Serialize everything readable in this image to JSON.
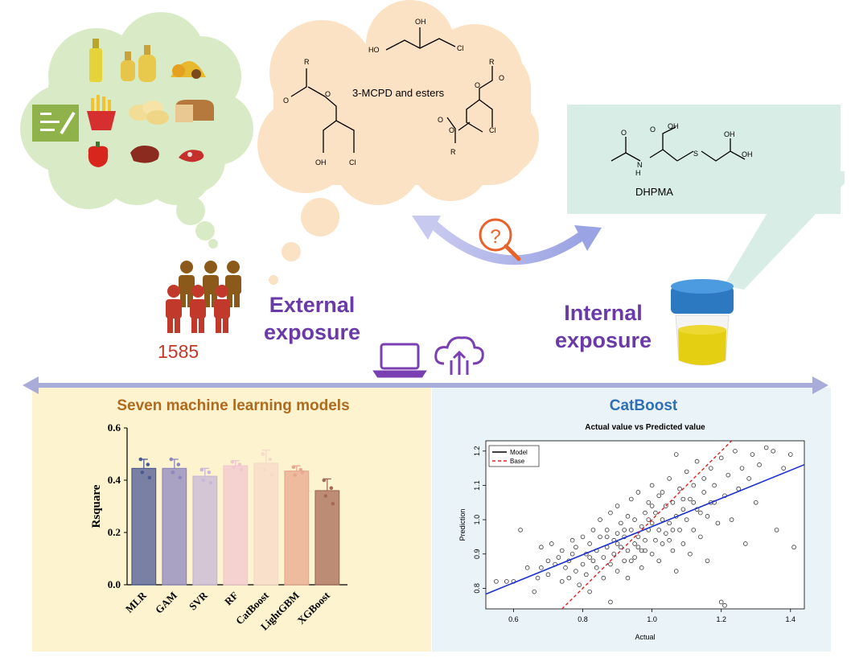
{
  "external": {
    "label": "External exposure",
    "population": "1585"
  },
  "internal": {
    "label": "Internal exposure"
  },
  "molecules": {
    "mcpd": "3-MCPD and esters",
    "dhpma": "DHPMA"
  },
  "models_panel": {
    "title": "Seven machine learning models"
  },
  "catboost_panel": {
    "title": "CatBoost"
  },
  "colors": {
    "cloud_green": "#d9ebc6",
    "cloud_peach": "#fbe2c4",
    "dhpma_box": "#d7ede6",
    "panel_left": "#fdf3cf",
    "panel_right": "#eaf3f8",
    "accent_purple": "#6a3aa8"
  },
  "icons": [
    "cooking-oil-icon",
    "fries-icon",
    "chips-icon",
    "bread-icon",
    "pepper-icon",
    "meat-icon",
    "questionnaire-icon",
    "magnifier-question-icon",
    "laptop-icon",
    "cloud-upload-icon",
    "urine-cup-icon",
    "people-icon"
  ],
  "chart_data": [
    {
      "type": "bar",
      "categories": [
        "MLR",
        "GAM",
        "SVR",
        "RF",
        "CatBoost",
        "LightGBM",
        "XGBoost"
      ],
      "values": [
        0.445,
        0.445,
        0.415,
        0.455,
        0.465,
        0.435,
        0.36
      ],
      "errors": [
        0.035,
        0.035,
        0.03,
        0.02,
        0.05,
        0.02,
        0.045
      ],
      "points": [
        [
          0.48,
          0.46,
          0.43,
          0.41
        ],
        [
          0.48,
          0.46,
          0.43,
          0.41
        ],
        [
          0.44,
          0.43,
          0.4,
          0.39
        ],
        [
          0.47,
          0.46,
          0.45,
          0.44
        ],
        [
          0.5,
          0.48,
          0.44,
          0.42
        ],
        [
          0.45,
          0.44,
          0.42,
          0.43
        ],
        [
          0.4,
          0.37,
          0.34,
          0.31
        ]
      ],
      "colors": [
        "#4c5a94",
        "#8e87bd",
        "#c7b7d8",
        "#f1c7cf",
        "#f7d9c8",
        "#e8a88f",
        "#a56a57"
      ],
      "ylabel": "Rsquare",
      "xlabel": "",
      "ylim": [
        0,
        0.6
      ],
      "yticks": [
        "0.0",
        "0.2",
        "0.4",
        "0.6"
      ]
    },
    {
      "type": "scatter",
      "title": "Actual value vs Predicted value",
      "xlabel": "Actual",
      "ylabel": "Prediction",
      "xlim": [
        0.52,
        1.44
      ],
      "ylim": [
        0.74,
        1.23
      ],
      "xticks": [
        "0.6",
        "0.8",
        "1.0",
        "1.2",
        "1.4"
      ],
      "yticks": [
        "0.8",
        "0.9",
        "1.0",
        "1.1",
        "1.2"
      ],
      "legend": {
        "placement": "top-left",
        "entries": [
          "Model",
          "Base"
        ]
      },
      "model_line": {
        "intercept": 0.57,
        "slope": 0.41
      },
      "base_line": {
        "intercept": 0,
        "slope": 1
      },
      "points": [
        [
          0.55,
          0.82
        ],
        [
          0.58,
          0.82
        ],
        [
          0.6,
          0.82
        ],
        [
          0.62,
          0.97
        ],
        [
          0.64,
          0.86
        ],
        [
          0.66,
          0.79
        ],
        [
          0.67,
          0.83
        ],
        [
          0.68,
          0.86
        ],
        [
          0.68,
          0.92
        ],
        [
          0.7,
          0.88
        ],
        [
          0.7,
          0.84
        ],
        [
          0.71,
          0.93
        ],
        [
          0.72,
          0.87
        ],
        [
          0.73,
          0.89
        ],
        [
          0.74,
          0.82
        ],
        [
          0.74,
          0.91
        ],
        [
          0.75,
          0.86
        ],
        [
          0.76,
          0.83
        ],
        [
          0.76,
          0.88
        ],
        [
          0.77,
          0.9
        ],
        [
          0.77,
          0.94
        ],
        [
          0.78,
          0.85
        ],
        [
          0.78,
          0.92
        ],
        [
          0.79,
          0.81
        ],
        [
          0.8,
          0.87
        ],
        [
          0.8,
          0.95
        ],
        [
          0.81,
          0.9
        ],
        [
          0.81,
          0.84
        ],
        [
          0.82,
          0.93
        ],
        [
          0.82,
          0.79
        ],
        [
          0.83,
          0.88
        ],
        [
          0.83,
          0.97
        ],
        [
          0.84,
          0.91
        ],
        [
          0.84,
          0.86
        ],
        [
          0.85,
          0.95
        ],
        [
          0.85,
          1.0
        ],
        [
          0.86,
          0.89
        ],
        [
          0.86,
          0.83
        ],
        [
          0.87,
          0.92
        ],
        [
          0.87,
          0.97
        ],
        [
          0.88,
          0.87
        ],
        [
          0.88,
          1.02
        ],
        [
          0.88,
          0.76
        ],
        [
          0.89,
          0.94
        ],
        [
          0.89,
          0.9
        ],
        [
          0.9,
          0.96
        ],
        [
          0.9,
          0.85
        ],
        [
          0.9,
          1.04
        ],
        [
          0.91,
          0.92
        ],
        [
          0.91,
          0.99
        ],
        [
          0.92,
          0.88
        ],
        [
          0.92,
          0.95
        ],
        [
          0.93,
          1.01
        ],
        [
          0.93,
          0.91
        ],
        [
          0.93,
          0.83
        ],
        [
          0.94,
          0.97
        ],
        [
          0.94,
          1.06
        ],
        [
          0.95,
          0.93
        ],
        [
          0.95,
          0.89
        ],
        [
          0.95,
          1.0
        ],
        [
          0.96,
          0.95
        ],
        [
          0.96,
          1.08
        ],
        [
          0.97,
          0.91
        ],
        [
          0.97,
          0.98
        ],
        [
          0.97,
          0.86
        ],
        [
          0.98,
          1.02
        ],
        [
          0.98,
          0.94
        ],
        [
          0.99,
          0.97
        ],
        [
          0.99,
          1.05
        ],
        [
          1.0,
          0.9
        ],
        [
          1.0,
          0.99
        ],
        [
          1.0,
          1.1
        ],
        [
          1.01,
          0.94
        ],
        [
          1.01,
          1.02
        ],
        [
          1.02,
          0.88
        ],
        [
          1.02,
          0.97
        ],
        [
          1.02,
          1.07
        ],
        [
          1.03,
          1.0
        ],
        [
          1.03,
          0.93
        ],
        [
          1.04,
          1.04
        ],
        [
          1.04,
          0.96
        ],
        [
          1.05,
          1.12
        ],
        [
          1.05,
          0.99
        ],
        [
          1.06,
          0.91
        ],
        [
          1.06,
          1.05
        ],
        [
          1.07,
          1.01
        ],
        [
          1.07,
          1.19
        ],
        [
          1.07,
          0.85
        ],
        [
          1.08,
          0.97
        ],
        [
          1.08,
          1.09
        ],
        [
          1.09,
          1.03
        ],
        [
          1.09,
          0.93
        ],
        [
          1.1,
          1.14
        ],
        [
          1.1,
          1.0
        ],
        [
          1.11,
          1.06
        ],
        [
          1.11,
          0.9
        ],
        [
          1.12,
          1.1
        ],
        [
          1.12,
          0.97
        ],
        [
          1.13,
          1.17
        ],
        [
          1.13,
          1.03
        ],
        [
          1.14,
          0.95
        ],
        [
          1.15,
          1.08
        ],
        [
          1.15,
          1.12
        ],
        [
          1.16,
          1.01
        ],
        [
          1.16,
          0.88
        ],
        [
          1.17,
          1.15
        ],
        [
          1.17,
          1.05
        ],
        [
          1.18,
          1.1
        ],
        [
          1.19,
          0.99
        ],
        [
          1.2,
          1.18
        ],
        [
          1.2,
          0.76
        ],
        [
          1.21,
          1.07
        ],
        [
          1.21,
          0.75
        ],
        [
          1.22,
          1.13
        ],
        [
          1.23,
          1.0
        ],
        [
          1.24,
          1.2
        ],
        [
          1.25,
          1.09
        ],
        [
          1.26,
          1.15
        ],
        [
          1.27,
          0.93
        ],
        [
          1.28,
          1.12
        ],
        [
          1.29,
          1.19
        ],
        [
          1.3,
          1.05
        ],
        [
          1.31,
          1.16
        ],
        [
          1.33,
          1.21
        ],
        [
          1.35,
          1.2
        ],
        [
          1.36,
          0.97
        ],
        [
          1.38,
          1.15
        ],
        [
          1.4,
          1.19
        ],
        [
          1.41,
          0.92
        ],
        [
          1.18,
          1.05
        ],
        [
          0.96,
          0.92
        ],
        [
          0.92,
          0.97
        ],
        [
          1.05,
          0.94
        ],
        [
          0.99,
          1.0
        ],
        [
          1.03,
          1.08
        ],
        [
          0.87,
          0.95
        ],
        [
          1.09,
          1.06
        ],
        [
          0.82,
          0.89
        ],
        [
          1.14,
          1.02
        ],
        [
          0.94,
          0.88
        ],
        [
          1.0,
          1.04
        ],
        [
          0.9,
          0.93
        ],
        [
          1.06,
          0.97
        ],
        [
          0.98,
          0.91
        ],
        [
          1.12,
          1.05
        ]
      ]
    }
  ]
}
